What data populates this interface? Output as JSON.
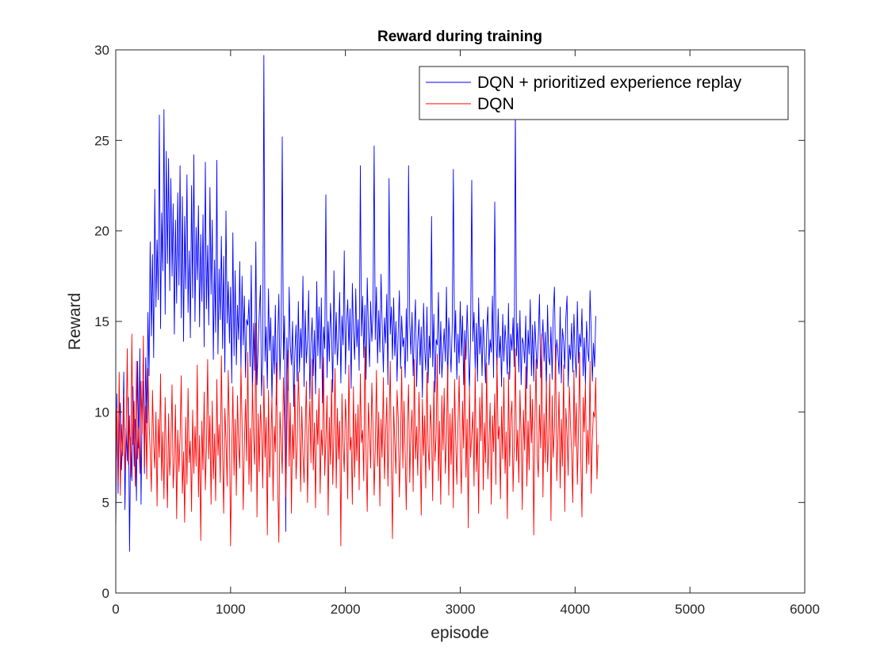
{
  "chart_data": {
    "type": "line",
    "title": "Reward during training",
    "xlabel": "episode",
    "ylabel": "Reward",
    "xlim": [
      0,
      6000
    ],
    "ylim": [
      0,
      30
    ],
    "xticks": [
      0,
      1000,
      2000,
      3000,
      4000,
      5000,
      6000
    ],
    "yticks": [
      0,
      5,
      10,
      15,
      20,
      25,
      30
    ],
    "grid": false,
    "legend_position": "top-right",
    "series": [
      {
        "name": "DQN + prioritized experience replay",
        "color": "#0000ff",
        "x_start": 0,
        "x_step": 10,
        "values": [
          3.3,
          11.0,
          5.5,
          9.2,
          10.5,
          6.8,
          8.4,
          12.2,
          4.6,
          9.1,
          7.3,
          10.8,
          2.3,
          8.6,
          6.2,
          11.4,
          7.0,
          9.6,
          5.1,
          12.8,
          8.0,
          13.5,
          4.9,
          10.2,
          11.7,
          6.6,
          13.0,
          9.4,
          15.5,
          12.0,
          19.4,
          14.2,
          18.7,
          13.0,
          22.3,
          15.8,
          19.5,
          16.2,
          26.4,
          14.6,
          21.0,
          17.8,
          26.7,
          15.4,
          24.4,
          18.2,
          24.0,
          16.7,
          22.9,
          17.5,
          21.5,
          14.3,
          20.6,
          16.0,
          22.1,
          17.0,
          23.6,
          15.2,
          21.9,
          13.9,
          20.8,
          16.8,
          23.1,
          15.5,
          18.9,
          14.1,
          22.5,
          16.3,
          24.2,
          15.0,
          20.2,
          17.3,
          21.4,
          14.7,
          19.8,
          16.1,
          20.9,
          13.6,
          23.8,
          15.7,
          19.2,
          14.8,
          22.4,
          16.5,
          20.6,
          12.9,
          18.4,
          14.4,
          23.9,
          13.2,
          17.9,
          15.1,
          19.7,
          13.5,
          18.6,
          12.2,
          21.1,
          14.9,
          17.2,
          13.8,
          16.9,
          11.6,
          19.9,
          13.1,
          17.8,
          12.6,
          15.9,
          14.0,
          18.3,
          12.4,
          17.5,
          13.7,
          16.4,
          11.9,
          15.1,
          14.8,
          16.2,
          12.5,
          18.1,
          10.8,
          14.9,
          12.3,
          19.4,
          11.5,
          13.6,
          15.4,
          17.0,
          10.9,
          13.0,
          29.7,
          12.8,
          14.7,
          11.3,
          16.8,
          13.4,
          15.2,
          10.6,
          14.2,
          12.1,
          15.9,
          10.4,
          13.9,
          16.5,
          11.8,
          14.4,
          25.2,
          12.9,
          15.3,
          3.4,
          14.1,
          11.2,
          16.9,
          13.7,
          12.6,
          15.0,
          10.3,
          13.3,
          14.8,
          11.7,
          16.1,
          12.2,
          14.6,
          13.0,
          17.5,
          11.4,
          15.6,
          12.7,
          14.0,
          16.7,
          10.7,
          13.8,
          15.2,
          12.0,
          14.5,
          11.0,
          17.2,
          13.1,
          15.8,
          12.4,
          16.3,
          10.5,
          14.7,
          13.5,
          22.0,
          11.9,
          15.0,
          12.8,
          16.0,
          14.3,
          11.1,
          17.8,
          13.2,
          15.5,
          12.6,
          14.1,
          16.6,
          11.6,
          15.3,
          13.7,
          18.9,
          12.1,
          14.9,
          16.2,
          13.4,
          15.7,
          11.3,
          17.1,
          14.4,
          12.9,
          16.8,
          13.6,
          15.1,
          12.3,
          23.6,
          14.2,
          16.4,
          13.0,
          15.9,
          11.8,
          17.4,
          14.6,
          12.5,
          16.1,
          13.9,
          15.4,
          24.7,
          14.0,
          16.9,
          12.7,
          15.6,
          13.3,
          17.6,
          14.8,
          12.2,
          15.2,
          13.8,
          16.5,
          11.5,
          22.9,
          14.3,
          15.8,
          12.9,
          16.3,
          13.1,
          15.0,
          11.7,
          14.5,
          16.7,
          12.4,
          15.3,
          13.6,
          14.1,
          11.9,
          15.7,
          12.8,
          23.6,
          14.9,
          13.2,
          15.5,
          12.0,
          14.4,
          16.2,
          11.4,
          13.9,
          15.1,
          12.6,
          14.7,
          10.8,
          16.0,
          13.5,
          12.3,
          15.8,
          11.6,
          14.2,
          13.0,
          20.8,
          12.5,
          15.4,
          11.1,
          14.0,
          13.7,
          16.6,
          12.1,
          15.0,
          11.9,
          13.4,
          14.6,
          12.8,
          16.9,
          11.3,
          15.2,
          13.8,
          12.2,
          14.8,
          23.4,
          13.3,
          15.6,
          11.8,
          14.3,
          12.7,
          16.1,
          13.1,
          15.3,
          11.5,
          14.5,
          12.9,
          15.9,
          13.6,
          11.2,
          14.1,
          22.8,
          13.9,
          15.5,
          12.4,
          14.9,
          11.7,
          16.3,
          13.2,
          14.7,
          12.0,
          15.1,
          13.5,
          11.6,
          14.4,
          15.8,
          12.6,
          14.0,
          13.3,
          16.4,
          11.9,
          21.6,
          14.6,
          12.3,
          15.7,
          13.0,
          14.2,
          11.4,
          15.4,
          12.8,
          14.8,
          13.7,
          12.1,
          16.0,
          11.8,
          14.3,
          13.4,
          15.2,
          12.5,
          26.8,
          13.1,
          14.9,
          12.2,
          15.6,
          11.5,
          14.1,
          13.8,
          12.7,
          15.3,
          11.3,
          14.5,
          13.2,
          16.2,
          12.0,
          14.8,
          11.7,
          15.0,
          13.5,
          12.4,
          14.2,
          16.5,
          11.9,
          13.6,
          15.1,
          12.8,
          14.4,
          11.2,
          15.9,
          13.0,
          12.6,
          14.7,
          11.8,
          15.5,
          16.9,
          12.3,
          14.0,
          13.3,
          12.1,
          15.8,
          11.6,
          14.6,
          13.9,
          12.4,
          15.2,
          16.4,
          11.4,
          13.7,
          12.9,
          14.9,
          12.2,
          15.4,
          13.1,
          11.9,
          16.1,
          12.7,
          14.3,
          13.6,
          15.7,
          12.0,
          14.1,
          11.5,
          15.0,
          13.4,
          12.8,
          16.7,
          14.5,
          11.7,
          13.8,
          12.5,
          15.3
        ]
      },
      {
        "name": "DQN",
        "color": "#ff0000",
        "x_start": 0,
        "x_step": 10,
        "values": [
          7.2,
          10.2,
          6.1,
          12.2,
          5.4,
          9.3,
          7.6,
          11.0,
          6.8,
          8.5,
          13.5,
          7.1,
          9.8,
          6.4,
          14.3,
          8.2,
          10.6,
          5.9,
          12.8,
          7.4,
          9.1,
          6.6,
          11.7,
          8.8,
          14.2,
          7.0,
          10.3,
          6.3,
          12.4,
          9.4,
          7.9,
          5.6,
          11.2,
          8.3,
          6.9,
          10.0,
          4.8,
          9.6,
          7.5,
          12.1,
          6.2,
          8.9,
          5.2,
          10.8,
          7.7,
          4.7,
          9.9,
          6.5,
          8.1,
          11.5,
          5.8,
          7.3,
          10.4,
          4.1,
          9.0,
          6.7,
          8.6,
          12.0,
          5.5,
          7.8,
          3.9,
          9.7,
          6.0,
          11.3,
          7.2,
          8.4,
          4.5,
          10.1,
          6.6,
          9.2,
          7.0,
          12.6,
          5.3,
          8.7,
          2.9,
          9.5,
          6.8,
          11.1,
          5.7,
          8.0,
          12.9,
          7.4,
          9.8,
          4.9,
          10.6,
          6.3,
          8.8,
          5.1,
          11.8,
          7.6,
          9.3,
          6.1,
          13.1,
          7.9,
          4.4,
          10.2,
          8.5,
          5.9,
          12.3,
          9.0,
          2.6,
          7.7,
          11.4,
          6.5,
          9.6,
          5.4,
          10.9,
          8.2,
          6.9,
          12.5,
          9.4,
          4.6,
          8.1,
          10.7,
          7.3,
          13.3,
          6.0,
          9.1,
          5.6,
          11.6,
          8.6,
          7.1,
          14.9,
          4.2,
          9.9,
          6.7,
          10.4,
          8.9,
          5.8,
          12.0,
          7.5,
          9.7,
          3.2,
          11.2,
          6.4,
          8.3,
          10.8,
          5.1,
          9.2,
          7.8,
          12.7,
          6.2,
          2.8,
          10.0,
          8.4,
          6.6,
          11.9,
          9.5,
          5.3,
          8.7,
          13.4,
          7.0,
          10.5,
          4.4,
          9.3,
          7.4,
          11.5,
          6.3,
          8.0,
          12.2,
          9.8,
          5.6,
          10.3,
          7.7,
          6.1,
          9.1,
          11.7,
          5.0,
          8.8,
          10.6,
          7.2,
          12.9,
          6.8,
          9.4,
          4.7,
          10.1,
          8.2,
          11.3,
          5.5,
          9.0,
          7.6,
          13.0,
          6.5,
          8.5,
          10.9,
          4.3,
          9.7,
          7.1,
          11.8,
          6.0,
          8.9,
          12.4,
          5.8,
          10.2,
          7.4,
          9.5,
          2.6,
          11.0,
          8.1,
          6.7,
          10.7,
          9.2,
          5.2,
          12.6,
          7.9,
          8.6,
          4.9,
          11.4,
          6.4,
          9.9,
          7.3,
          10.4,
          5.7,
          12.1,
          8.3,
          9.0,
          6.2,
          13.6,
          7.7,
          4.5,
          10.5,
          8.8,
          6.9,
          11.6,
          9.3,
          5.4,
          8.0,
          12.3,
          7.0,
          10.0,
          4.8,
          9.6,
          7.5,
          11.9,
          6.3,
          8.7,
          10.8,
          5.9,
          9.1,
          12.8,
          7.2,
          3.0,
          10.3,
          8.4,
          6.6,
          11.2,
          9.7,
          5.3,
          8.2,
          12.5,
          6.9,
          10.6,
          7.8,
          4.6,
          9.4,
          11.5,
          6.1,
          8.9,
          10.1,
          5.6,
          12.9,
          7.4,
          9.2,
          6.5,
          11.1,
          8.5,
          4.3,
          10.7,
          7.6,
          9.8,
          5.8,
          12.2,
          8.1,
          6.8,
          10.4,
          9.0,
          5.1,
          11.7,
          7.3,
          8.7,
          13.2,
          6.2,
          9.5,
          4.9,
          10.9,
          7.9,
          11.3,
          6.6,
          8.3,
          12.6,
          5.4,
          9.9,
          7.1,
          10.2,
          4.7,
          11.8,
          8.6,
          6.0,
          9.3,
          12.0,
          7.7,
          5.5,
          10.6,
          8.0,
          13.8,
          6.4,
          9.6,
          3.6,
          11.4,
          7.5,
          8.8,
          10.0,
          5.9,
          12.4,
          6.7,
          9.1,
          4.4,
          10.8,
          8.4,
          11.6,
          5.7,
          9.4,
          7.2,
          12.7,
          6.3,
          8.1,
          10.5,
          4.9,
          9.8,
          7.8,
          11.0,
          6.0,
          13.0,
          8.5,
          9.2,
          5.2,
          10.3,
          7.4,
          11.9,
          6.6,
          8.9,
          4.1,
          12.2,
          7.0,
          9.7,
          10.6,
          5.6,
          8.2,
          13.5,
          7.3,
          9.0,
          6.1,
          11.2,
          8.7,
          4.6,
          10.1,
          7.9,
          12.5,
          5.9,
          9.5,
          6.8,
          11.5,
          8.3,
          10.7,
          3.2,
          9.3,
          12.9,
          7.6,
          6.4,
          10.4,
          8.0,
          14.3,
          5.3,
          9.9,
          7.2,
          11.7,
          6.7,
          8.6,
          12.1,
          4.0,
          10.9,
          7.5,
          9.1,
          13.7,
          6.2,
          8.4,
          11.1,
          5.8,
          9.6,
          7.0,
          12.6,
          4.5,
          10.2,
          8.8,
          6.5,
          11.4,
          9.4,
          7.7,
          5.0,
          12.3,
          8.1,
          10.5,
          6.0,
          9.2,
          13.3,
          7.4,
          4.2,
          10.8,
          8.9,
          11.6,
          6.6,
          9.0,
          7.1,
          12.8,
          5.5,
          8.5,
          10.0,
          9.7,
          11.9,
          6.3,
          8.2
        ]
      }
    ]
  }
}
